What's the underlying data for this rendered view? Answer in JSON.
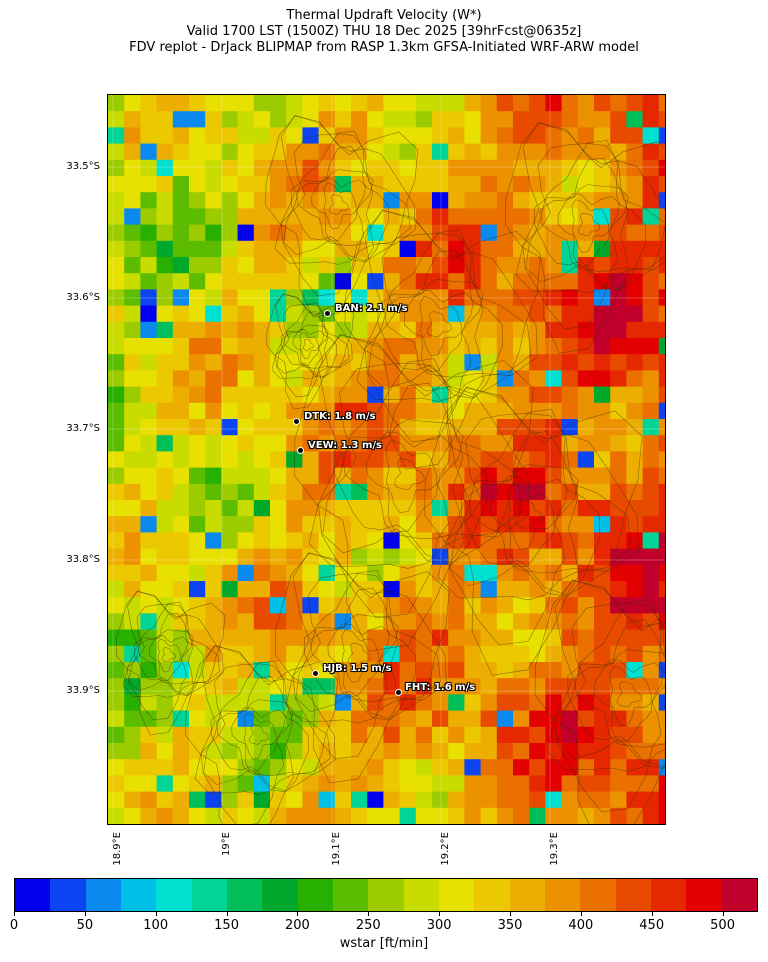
{
  "title": {
    "line1": "Thermal Updraft Velocity (W*)",
    "line2": "Valid 1700 LST (1500Z) THU 18 Dec 2025 [39hrFcst@0635z]",
    "line3": "FDV replot - DrJack BLIPMAP from RASP 1.3km GFSA-Initiated WRF-ARW model"
  },
  "latitude_labels": [
    "33.5°S",
    "33.6°S",
    "33.7°S",
    "33.8°S",
    "33.9°S"
  ],
  "longitude_labels": [
    "18.9°E",
    "19°E",
    "19.1°E",
    "19.2°E",
    "19.3°E"
  ],
  "stations": [
    {
      "label": "BAN: 2.1 m/s"
    },
    {
      "label": "DTK: 1.8 m/s"
    },
    {
      "label": "VEW: 1.3 m/s"
    },
    {
      "label": "HJB: 1.5 m/s"
    },
    {
      "label": "FHT: 1.6 m/s"
    }
  ],
  "colorbar": {
    "label": "wstar [ft/min]",
    "ticks": [
      "0",
      "50",
      "100",
      "150",
      "200",
      "250",
      "300",
      "350",
      "400",
      "450",
      "500"
    ],
    "colors": [
      "#0000ee",
      "#0c44f2",
      "#0a8aee",
      "#00c0e8",
      "#00e0d0",
      "#00d496",
      "#00bf5a",
      "#00a82c",
      "#28b000",
      "#5cbc00",
      "#9ccc00",
      "#c8dc00",
      "#e8e000",
      "#ecc800",
      "#ecae00",
      "#ec9200",
      "#ea7000",
      "#e84a00",
      "#e62800",
      "#e20000",
      "#c0002a"
    ]
  },
  "colors": {
    "contour": "#3a2a00",
    "coast": "#000000"
  }
}
